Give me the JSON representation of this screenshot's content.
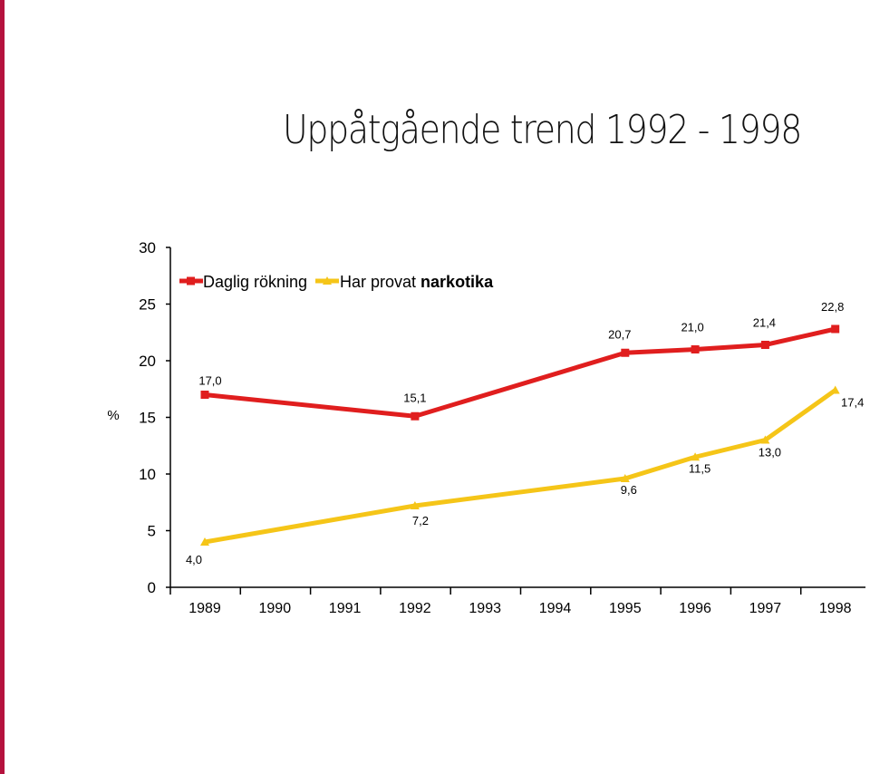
{
  "slide": {
    "title": "Uppåtgående trend 1992 - 1998"
  },
  "colors": {
    "accent": "#b5123e",
    "series_red": "#e01e1e",
    "series_yellow": "#f5c518"
  },
  "chart_data": {
    "type": "line",
    "title": "",
    "xlabel": "",
    "ylabel": "%",
    "categories": [
      "1989",
      "1990",
      "1991",
      "1992",
      "1993",
      "1994",
      "1995",
      "1996",
      "1997",
      "1998"
    ],
    "ylim": [
      0,
      30
    ],
    "yticks": [
      0,
      5,
      10,
      15,
      20,
      25,
      30
    ],
    "grid": false,
    "legend_position": "top-left",
    "series": [
      {
        "name": "Daglig rökning",
        "color": "#e01e1e",
        "marker": "square",
        "points": [
          {
            "x": "1989",
            "y": 17.0,
            "label": "17,0"
          },
          {
            "x": "1992",
            "y": 15.1,
            "label": "15,1"
          },
          {
            "x": "1995",
            "y": 20.7,
            "label": "20,7"
          },
          {
            "x": "1996",
            "y": 21.0,
            "label": "21,0"
          },
          {
            "x": "1997",
            "y": 21.4,
            "label": "21,4"
          },
          {
            "x": "1998",
            "y": 22.8,
            "label": "22,8"
          }
        ]
      },
      {
        "name": "Har provat narkotika",
        "name_plain": "Har provat ",
        "name_bold": "narkotika",
        "color": "#f5c518",
        "marker": "triangle",
        "points": [
          {
            "x": "1989",
            "y": 4.0,
            "label": "4,0"
          },
          {
            "x": "1992",
            "y": 7.2,
            "label": "7,2"
          },
          {
            "x": "1995",
            "y": 9.6,
            "label": "9,6"
          },
          {
            "x": "1996",
            "y": 11.5,
            "label": "11,5"
          },
          {
            "x": "1997",
            "y": 13.0,
            "label": "13,0"
          },
          {
            "x": "1998",
            "y": 17.4,
            "label": "17,4"
          }
        ]
      }
    ]
  }
}
